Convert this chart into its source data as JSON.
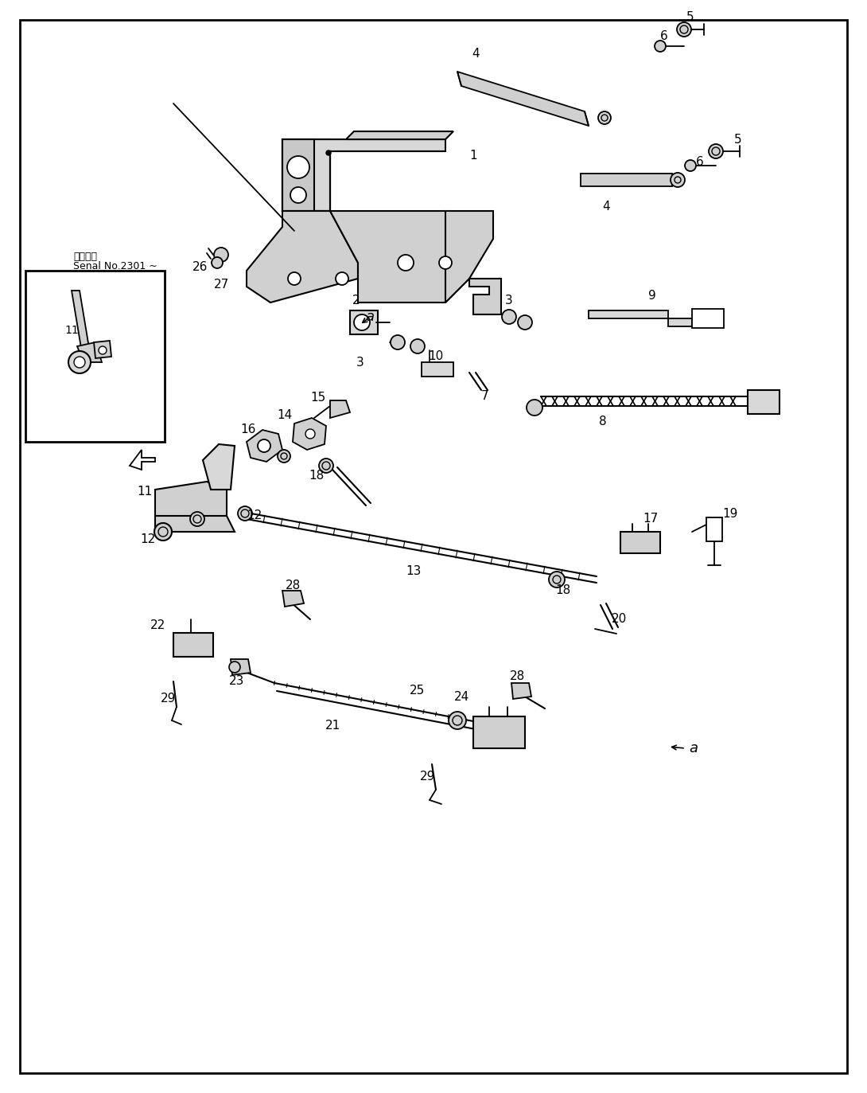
{
  "bg_color": "#ffffff",
  "line_color": "#000000",
  "text_color": "#000000",
  "note_line1": "適用号母",
  "note_line2": "Senal No.2301 ~",
  "figsize": [
    10.9,
    13.73
  ],
  "dpi": 100
}
